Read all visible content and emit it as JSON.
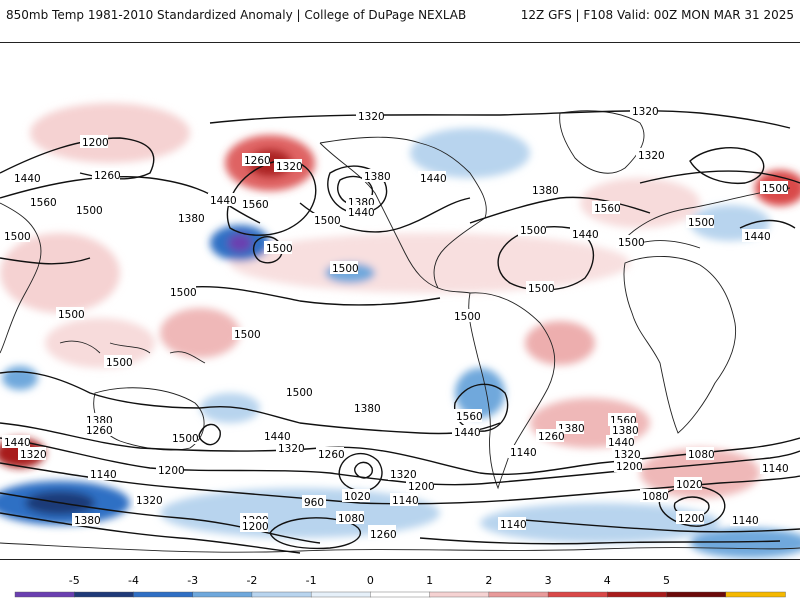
{
  "header": {
    "title": "850mb Temp 1981-2010 Standardized Anomaly | College of DuPage NEXLAB",
    "run_info": "12Z GFS | F108 Valid: 00Z MON MAR 31 2025"
  },
  "map": {
    "contour_labels": [
      {
        "id": "c1",
        "text": "1320"
      },
      {
        "id": "c2",
        "text": "1320"
      },
      {
        "id": "c3",
        "text": "1200"
      },
      {
        "id": "c4",
        "text": "1260"
      },
      {
        "id": "c5",
        "text": "1440"
      },
      {
        "id": "c6",
        "text": "1260"
      },
      {
        "id": "c7",
        "text": "1320"
      },
      {
        "id": "c8",
        "text": "1380"
      },
      {
        "id": "c9",
        "text": "1440"
      },
      {
        "id": "c10",
        "text": "1320"
      },
      {
        "id": "c11",
        "text": "1380"
      },
      {
        "id": "c12",
        "text": "1560"
      },
      {
        "id": "c13",
        "text": "1440"
      },
      {
        "id": "c14",
        "text": "1380"
      },
      {
        "id": "c15",
        "text": "1500"
      },
      {
        "id": "c16",
        "text": "1440"
      },
      {
        "id": "c17",
        "text": "1500"
      },
      {
        "id": "c18",
        "text": "1500"
      },
      {
        "id": "c19",
        "text": "1440"
      },
      {
        "id": "c20",
        "text": "1560"
      },
      {
        "id": "c21",
        "text": "1500"
      },
      {
        "id": "c22",
        "text": "1380"
      },
      {
        "id": "c23",
        "text": "1440"
      },
      {
        "id": "c24",
        "text": "1500"
      },
      {
        "id": "c25",
        "text": "1560"
      },
      {
        "id": "c26",
        "text": "1500"
      },
      {
        "id": "c27",
        "text": "1500"
      },
      {
        "id": "c28",
        "text": "1500"
      },
      {
        "id": "c29",
        "text": "1500"
      },
      {
        "id": "c30",
        "text": "1500"
      },
      {
        "id": "c31",
        "text": "1500"
      },
      {
        "id": "c32",
        "text": "1500"
      },
      {
        "id": "c33",
        "text": "1500"
      },
      {
        "id": "c34",
        "text": "1500"
      },
      {
        "id": "c35",
        "text": "1560"
      },
      {
        "id": "c36",
        "text": "1500"
      },
      {
        "id": "c37",
        "text": "1560"
      },
      {
        "id": "c38",
        "text": "1500"
      },
      {
        "id": "c39",
        "text": "1380"
      },
      {
        "id": "c40",
        "text": "1260"
      },
      {
        "id": "c41",
        "text": "1500"
      },
      {
        "id": "c42",
        "text": "1440"
      },
      {
        "id": "c43",
        "text": "1320"
      },
      {
        "id": "c44",
        "text": "1260"
      },
      {
        "id": "c45",
        "text": "1380"
      },
      {
        "id": "c46",
        "text": "1440"
      },
      {
        "id": "c47",
        "text": "1140"
      },
      {
        "id": "c48",
        "text": "1200"
      },
      {
        "id": "c49",
        "text": "1320"
      },
      {
        "id": "c50",
        "text": "1200"
      },
      {
        "id": "c51",
        "text": "1140"
      },
      {
        "id": "c52",
        "text": "960"
      },
      {
        "id": "c53",
        "text": "1020"
      },
      {
        "id": "c54",
        "text": "1140"
      },
      {
        "id": "c55",
        "text": "1080"
      },
      {
        "id": "c56",
        "text": "1200"
      },
      {
        "id": "c57",
        "text": "1260"
      },
      {
        "id": "c58",
        "text": "1140"
      },
      {
        "id": "c59",
        "text": "1380"
      },
      {
        "id": "c60",
        "text": "1260"
      },
      {
        "id": "c61",
        "text": "1440"
      },
      {
        "id": "c62",
        "text": "1380"
      },
      {
        "id": "c63",
        "text": "1320"
      },
      {
        "id": "c64",
        "text": "1200"
      },
      {
        "id": "c65",
        "text": "1080"
      },
      {
        "id": "c66",
        "text": "1020"
      },
      {
        "id": "c67",
        "text": "1140"
      },
      {
        "id": "c68",
        "text": "1200"
      },
      {
        "id": "c69",
        "text": "1140"
      },
      {
        "id": "c70",
        "text": "1080"
      },
      {
        "id": "c71",
        "text": "1320"
      },
      {
        "id": "c72",
        "text": "1200"
      },
      {
        "id": "c73",
        "text": "1260"
      },
      {
        "id": "c74",
        "text": "1380"
      },
      {
        "id": "c75",
        "text": "1440"
      },
      {
        "id": "c76",
        "text": "1320"
      }
    ]
  },
  "legend": {
    "ticks": [
      "-5",
      "-4",
      "-3",
      "-2",
      "-1",
      "0",
      "1",
      "2",
      "3",
      "4",
      "5"
    ],
    "colors": [
      "#6a3fb0",
      "#1f3a78",
      "#2f6fc4",
      "#6fa8dc",
      "#b8d4ee",
      "#e6f0f9",
      "#ffffff",
      "#f5d2d2",
      "#e89a9a",
      "#d94848",
      "#a81c1c",
      "#6b0a0a",
      "#f5b800"
    ]
  }
}
